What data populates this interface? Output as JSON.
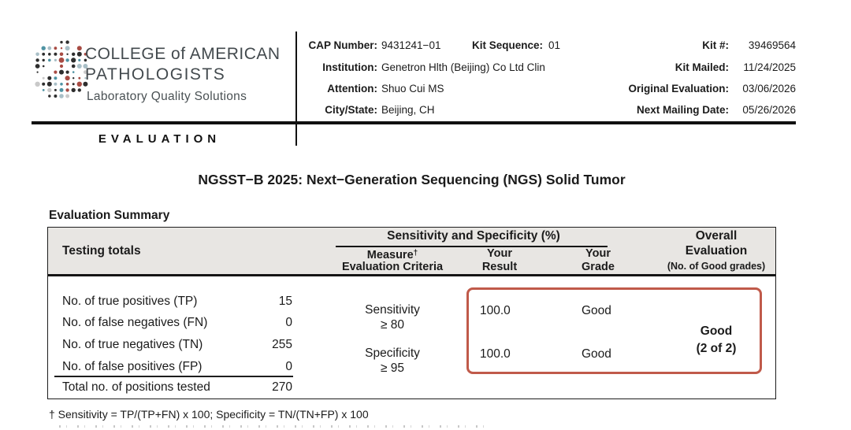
{
  "colors": {
    "accent-red": "#c05a4a",
    "band-gray": "#e8e6e3",
    "ink": "#1b1b1b"
  },
  "logo": {
    "org_line1": "COLLEGE of AMERICAN",
    "org_line2": "PATHOLOGISTS",
    "tagline": "Laboratory Quality Solutions",
    "banner": "EVALUATION",
    "palette": [
      "#2e2e2e",
      "#4f93a3",
      "#a84b43",
      "#a9bfc7",
      "#c9c9c9"
    ]
  },
  "kit_info": {
    "left": {
      "cap_number_label": "CAP Number:",
      "cap_number": "9431241−01",
      "kit_sequence_label": "Kit Sequence:",
      "kit_sequence": "01",
      "institution_label": "Institution:",
      "institution": "Genetron Hlth (Beijing) Co Ltd Clin",
      "attention_label": "Attention:",
      "attention": "Shuo Cui MS",
      "city_state_label": "City/State:",
      "city_state": "Beijing, CH"
    },
    "right": {
      "kit_number_label": "Kit #:",
      "kit_number": "39469564",
      "kit_mailed_label": "Kit Mailed:",
      "kit_mailed": "11/24/2025",
      "original_evaluation_label": "Original Evaluation:",
      "original_evaluation": "03/06/2026",
      "next_mailing_label": "Next Mailing Date:",
      "next_mailing": "05/26/2026"
    }
  },
  "title": "NGSST−B 2025: Next−Generation Sequencing (NGS) Solid Tumor",
  "summary": {
    "heading": "Evaluation Summary",
    "table": {
      "totals_header": "Testing totals",
      "group_header": "Sensitivity and Specificity (%)",
      "measure_col_line1": "Measure",
      "measure_col_dagger": "†",
      "measure_col_line2": "Evaluation Criteria",
      "result_col_line1": "Your",
      "result_col_line2": "Result",
      "grade_col_line1": "Your",
      "grade_col_line2": "Grade",
      "overall_col_line1": "Overall",
      "overall_col_line2": "Evaluation",
      "overall_col_line3": "(No. of Good grades)",
      "totals": [
        {
          "label": "No. of true positives (TP)",
          "value": "15"
        },
        {
          "label": "No. of false negatives (FN)",
          "value": "0"
        },
        {
          "label": "No. of true negatives (TN)",
          "value": "255"
        },
        {
          "label": "No. of false positives (FP)",
          "value": "0"
        },
        {
          "label": "Total no. of positions tested",
          "value": "270"
        }
      ],
      "measures": [
        {
          "name": "Sensitivity",
          "criteria": "≥ 80",
          "result": "100.0",
          "grade": "Good"
        },
        {
          "name": "Specificity",
          "criteria": "≥ 95",
          "result": "100.0",
          "grade": "Good"
        }
      ],
      "overall_grade": "Good",
      "overall_count": "(2 of 2)"
    }
  },
  "footnote": "† Sensitivity = TP/(TP+FN) x 100; Specificity = TN/(TN+FP) x 100"
}
